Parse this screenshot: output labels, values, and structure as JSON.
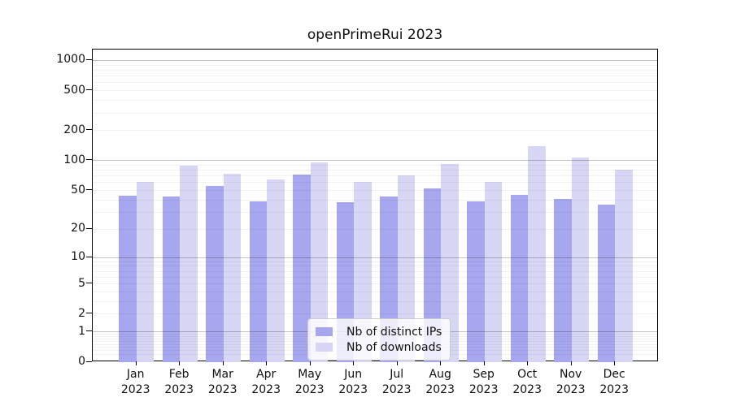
{
  "chart_data": {
    "type": "bar",
    "title": "openPrimeRui 2023",
    "categories": [
      "Jan",
      "Feb",
      "Mar",
      "Apr",
      "May",
      "Jun",
      "Jul",
      "Aug",
      "Sep",
      "Oct",
      "Nov",
      "Dec"
    ],
    "x_year_label": "2023",
    "series": [
      {
        "name": "Nb of distinct IPs",
        "color": "#a7a7f0",
        "values": [
          44,
          43,
          55,
          39,
          72,
          38,
          43,
          52,
          39,
          45,
          41,
          36
        ]
      },
      {
        "name": "Nb of downloads",
        "color": "#d7d7f5",
        "values": [
          61,
          89,
          74,
          65,
          95,
          61,
          71,
          93,
          61,
          140,
          108,
          81
        ]
      }
    ],
    "yscale": "log1p",
    "yticks": [
      1000,
      500,
      200,
      100,
      50,
      20,
      10,
      5,
      2,
      1,
      0
    ],
    "ylim": [
      0,
      1283
    ],
    "grid": true,
    "legend_position": "lower-center",
    "colors": {
      "major_grid": "#c2c2c2",
      "minor_grid": "#f0f0f0",
      "spine": "#000000",
      "background": "#ffffff"
    }
  }
}
